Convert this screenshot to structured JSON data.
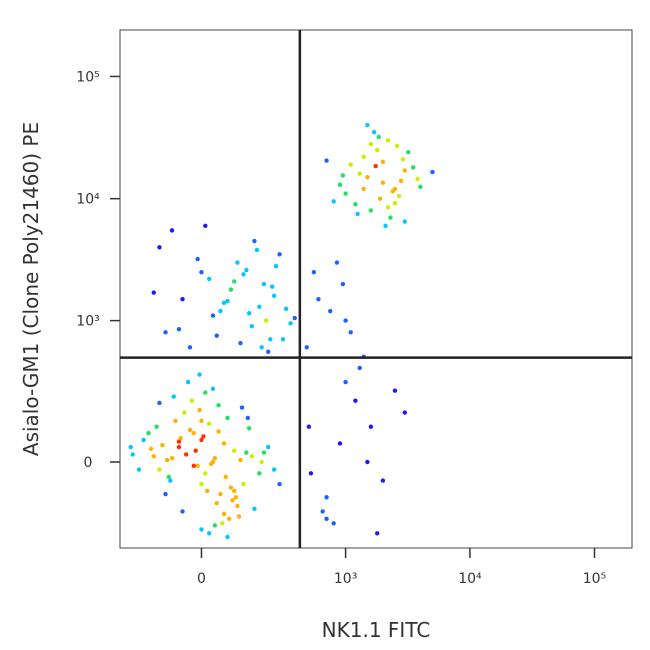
{
  "chart_data": {
    "type": "scatter",
    "xlabel": "NK1.1 FITC",
    "ylabel": "Asialo-GM1 (Clone Poly21460) PE",
    "xscale": "biexponential",
    "yscale": "biexponential",
    "xlim": [
      -300,
      200000
    ],
    "ylim": [
      -340,
      240000
    ],
    "xticks": [
      0,
      {
        "value": 1000,
        "label": "10³"
      },
      {
        "value": 10000,
        "label": "10⁴"
      },
      {
        "value": 100000,
        "label": "10⁵"
      }
    ],
    "yticks": [
      0,
      {
        "value": 1000,
        "label": "10³"
      },
      {
        "value": 10000,
        "label": "10⁴"
      },
      {
        "value": 100000,
        "label": "10⁵"
      }
    ],
    "gates": {
      "x": 420,
      "y": 490
    },
    "x": [
      -40,
      10,
      60,
      -80,
      120,
      -20,
      30,
      90,
      -120,
      0,
      50,
      -60,
      150,
      20,
      -10,
      80,
      -150,
      40,
      -30,
      110,
      70,
      -90,
      5,
      -50,
      130,
      25,
      -5,
      95,
      -110,
      45,
      15,
      -70,
      180,
      -180,
      60,
      -25,
      35,
      100,
      -140,
      0,
      220,
      -200,
      75,
      -45,
      140,
      10,
      -85,
      55,
      -15,
      85,
      -130,
      160,
      30,
      -60,
      250,
      -230,
      0,
      115,
      -100,
      65,
      -35,
      190,
      -160,
      20,
      45,
      -75,
      105,
      -20,
      -240,
      280,
      0,
      70,
      -55,
      135,
      -120,
      200,
      35,
      -5,
      90,
      -95,
      -100,
      -50,
      0,
      50,
      100,
      150,
      200,
      250,
      300,
      -120,
      -30,
      30,
      80,
      130,
      180,
      230,
      280,
      350,
      -80,
      20,
      60,
      110,
      160,
      210,
      260,
      -140,
      -10,
      40,
      90,
      140,
      190,
      240,
      320,
      -60,
      10,
      70,
      120,
      170,
      220,
      380,
      1500,
      2000,
      2500,
      1200,
      1800,
      3000,
      1000,
      2200,
      1600,
      2800,
      3500,
      1400,
      2100,
      900,
      1900,
      2600,
      1300,
      4000,
      1700,
      2300,
      800,
      2900,
      1100,
      2400,
      1500,
      3200,
      2000,
      1250,
      1750,
      2700,
      950,
      3800,
      1600,
      2200,
      5000,
      1400,
      2500,
      1850,
      700,
      3000,
      500,
      700,
      1000,
      1500,
      600,
      800,
      1200,
      2000,
      550,
      900,
      1100,
      3000,
      650,
      1300,
      750,
      1800,
      480,
      950,
      2500,
      1600,
      520,
      850,
      1400,
      700,
      1000
    ],
    "values": [
      20,
      -30,
      50,
      10,
      -60,
      80,
      0,
      30,
      -20,
      60,
      -90,
      40,
      15,
      110,
      -10,
      -70,
      35,
      -120,
      90,
      5,
      130,
      -40,
      70,
      -150,
      25,
      -5,
      160,
      -100,
      45,
      85,
      -80,
      120,
      -30,
      60,
      -160,
      200,
      10,
      -130,
      15,
      -60,
      40,
      -20,
      -180,
      150,
      95,
      240,
      -50,
      -200,
      30,
      -110,
      100,
      -140,
      260,
      55,
      -20,
      20,
      -230,
      170,
      -90,
      -40,
      300,
      0,
      80,
      -250,
      180,
      220,
      -170,
      -10,
      40,
      -60,
      120,
      -270,
      65,
      130,
      190,
      25,
      -210,
      350,
      -80,
      5,
      800,
      1500,
      2500,
      1200,
      3000,
      900,
      2000,
      1600,
      700,
      4000,
      600,
      1100,
      1800,
      2600,
      1300,
      700,
      3500,
      950,
      5500,
      2200,
      1400,
      650,
      4500,
      1000,
      2800,
      1700,
      3200,
      750,
      2100,
      1150,
      600,
      1900,
      1250,
      850,
      6000,
      1450,
      2400,
      3800,
      550,
      1050,
      15000,
      20000,
      12000,
      9000,
      25000,
      17000,
      11000,
      30000,
      8000,
      14000,
      18000,
      22000,
      6000,
      13000,
      10000,
      27000,
      16000,
      12500,
      35000,
      7000,
      9500,
      21000,
      19000,
      11500,
      40000,
      24000,
      13500,
      7500,
      18500,
      10500,
      15500,
      14500,
      28000,
      8500,
      16500,
      12000,
      9200,
      32000,
      20500,
      6500,
      100,
      -100,
      300,
      0,
      1500,
      -200,
      200,
      -50,
      2500,
      50,
      800,
      150,
      -150,
      400,
      1200,
      -250,
      600,
      2000,
      250,
      100,
      -30,
      3000,
      500,
      -180,
      1000
    ]
  }
}
